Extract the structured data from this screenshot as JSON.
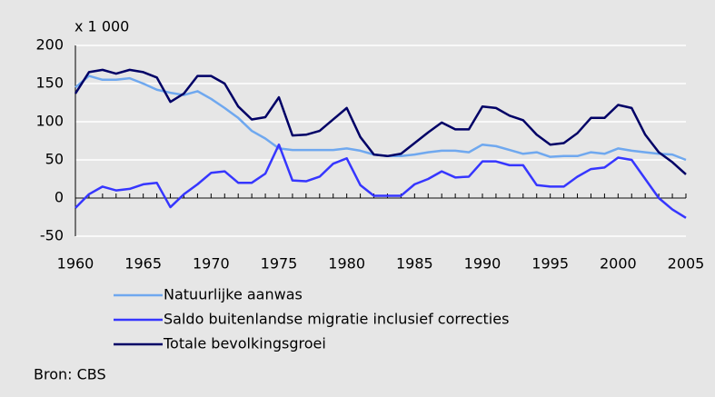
{
  "chart_data": {
    "type": "line",
    "unit_label": "x 1 000",
    "source": "Bron: CBS",
    "x": [
      1960,
      1961,
      1962,
      1963,
      1964,
      1965,
      1966,
      1967,
      1968,
      1969,
      1970,
      1971,
      1972,
      1973,
      1974,
      1975,
      1976,
      1977,
      1978,
      1979,
      1980,
      1981,
      1982,
      1983,
      1984,
      1985,
      1986,
      1987,
      1988,
      1989,
      1990,
      1991,
      1992,
      1993,
      1994,
      1995,
      1996,
      1997,
      1998,
      1999,
      2000,
      2001,
      2002,
      2003,
      2004,
      2005
    ],
    "xlim": [
      1960,
      2005
    ],
    "xticks": [
      1960,
      1965,
      1970,
      1975,
      1980,
      1985,
      1990,
      1995,
      2000,
      2005
    ],
    "ylim": [
      -50,
      200
    ],
    "yticks": [
      -50,
      0,
      50,
      100,
      150,
      200
    ],
    "grid": true,
    "series": [
      {
        "name": "Natuurlijke aanwas",
        "color": "#6fa8ef",
        "values": [
          145,
          160,
          155,
          155,
          157,
          150,
          142,
          138,
          135,
          140,
          130,
          118,
          105,
          88,
          78,
          65,
          63,
          63,
          63,
          63,
          65,
          62,
          57,
          55,
          55,
          57,
          60,
          62,
          62,
          60,
          70,
          68,
          63,
          58,
          60,
          54,
          55,
          55,
          60,
          58,
          65,
          62,
          60,
          58,
          57,
          50
        ]
      },
      {
        "name": "Saldo buitenlandse migratie inclusief correcties",
        "color": "#3636ff",
        "values": [
          -13,
          5,
          15,
          10,
          12,
          18,
          20,
          -12,
          5,
          18,
          33,
          35,
          20,
          20,
          32,
          70,
          23,
          22,
          28,
          45,
          52,
          17,
          3,
          3,
          3,
          18,
          25,
          35,
          27,
          28,
          48,
          48,
          43,
          43,
          17,
          15,
          15,
          28,
          38,
          40,
          53,
          50,
          25,
          0,
          -15,
          -26
        ]
      },
      {
        "name": "Totale bevolkingsgroei",
        "color": "#000066",
        "values": [
          137,
          165,
          168,
          163,
          168,
          165,
          158,
          126,
          137,
          160,
          160,
          150,
          120,
          103,
          106,
          132,
          82,
          83,
          88,
          103,
          118,
          80,
          57,
          55,
          58,
          72,
          86,
          99,
          90,
          90,
          120,
          118,
          108,
          102,
          83,
          70,
          72,
          85,
          105,
          105,
          122,
          118,
          83,
          60,
          47,
          31
        ]
      }
    ]
  }
}
